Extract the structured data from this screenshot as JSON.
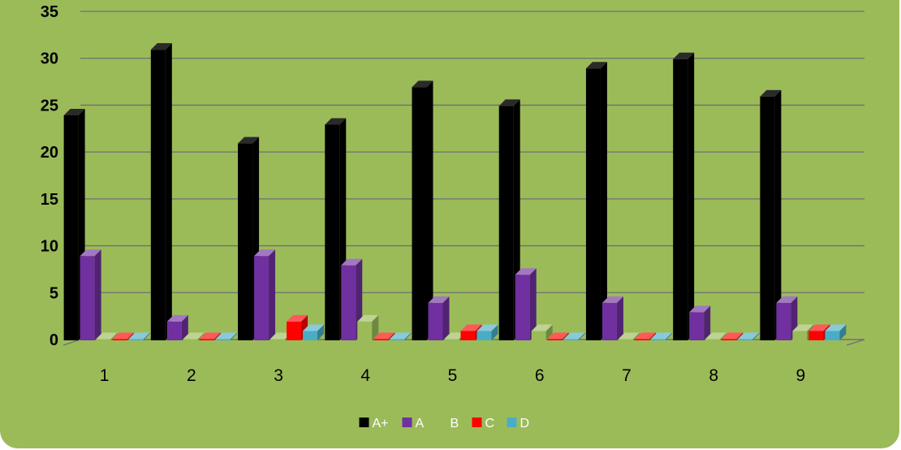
{
  "chart_data": {
    "type": "bar",
    "title": "",
    "xlabel": "",
    "ylabel": "",
    "categories": [
      "1",
      "2",
      "3",
      "4",
      "5",
      "6",
      "7",
      "8",
      "9"
    ],
    "series": [
      {
        "name": "A+",
        "color": "#000000",
        "values": [
          24,
          31,
          21,
          23,
          27,
          25,
          29,
          30,
          26
        ]
      },
      {
        "name": "A",
        "color": "#7030a0",
        "values": [
          9,
          2,
          9,
          8,
          4,
          7,
          4,
          3,
          4
        ]
      },
      {
        "name": "B",
        "color": "#9bbb59",
        "values": [
          0,
          0,
          0,
          2,
          0,
          1,
          0,
          0,
          1
        ]
      },
      {
        "name": "C",
        "color": "#ff0000",
        "values": [
          0,
          0,
          2,
          0,
          1,
          0,
          0,
          0,
          1
        ]
      },
      {
        "name": "D",
        "color": "#4bacc6",
        "values": [
          0,
          0,
          1,
          0,
          1,
          0,
          0,
          0,
          1
        ]
      }
    ],
    "ylim": [
      0,
      35
    ],
    "yticks": [
      0,
      5,
      10,
      15,
      20,
      25,
      30,
      35
    ],
    "grid": true,
    "legend_position": "bottom",
    "style": "3d-clustered-column",
    "background_color": "#9bbb59",
    "gridline_color": "#6f6f6f"
  }
}
